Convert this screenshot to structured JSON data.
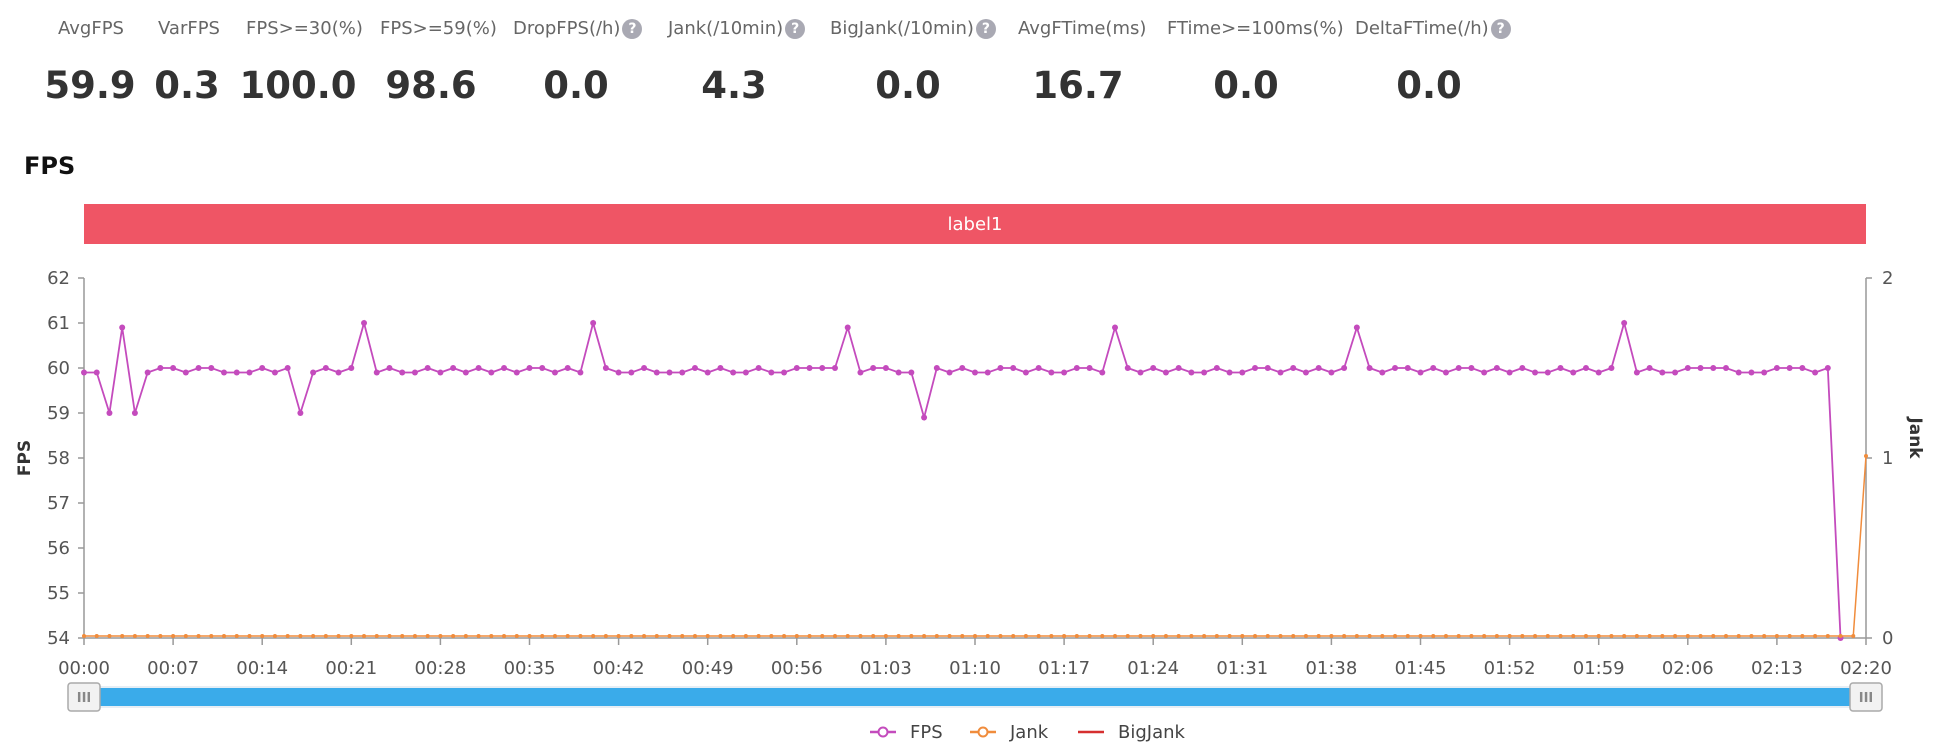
{
  "metrics": [
    {
      "label": "AvgFPS",
      "value": "59.9",
      "help": false
    },
    {
      "label": "VarFPS",
      "value": "0.3",
      "help": false
    },
    {
      "label": "FPS>=30(%)",
      "value": "100.0",
      "help": false
    },
    {
      "label": "FPS>=59(%)",
      "value": "98.6",
      "help": false
    },
    {
      "label": "DropFPS(/h)",
      "value": "0.0",
      "help": true
    },
    {
      "label": "Jank(/10min)",
      "value": "4.3",
      "help": true
    },
    {
      "label": "BigJank(/10min)",
      "value": "0.0",
      "help": true
    },
    {
      "label": "AvgFTime(ms)",
      "value": "16.7",
      "help": false
    },
    {
      "label": "FTime>=100ms(%)",
      "value": "0.0",
      "help": false
    },
    {
      "label": "DeltaFTime(/h)",
      "value": "0.0",
      "help": true
    }
  ],
  "help_glyph": "?",
  "section_title": "FPS",
  "colors": {
    "fps": "#c44bbd",
    "jank": "#f08c3c",
    "bigjank": "#d62f2f",
    "label_band": "#ef5565",
    "slider_fill": "#3aabea",
    "axis": "#999999"
  },
  "chart_data": {
    "type": "line",
    "title": "FPS",
    "label_band": "label1",
    "ylabel": "FPS",
    "y2label": "Jank",
    "ylim": [
      54,
      62
    ],
    "y2lim": [
      0,
      2
    ],
    "yticks": [
      "54",
      "55",
      "56",
      "57",
      "58",
      "59",
      "60",
      "61",
      "62"
    ],
    "y2ticks": [
      "0",
      "1",
      "2"
    ],
    "xlim": [
      0,
      140
    ],
    "xticks": [
      "00:00",
      "00:07",
      "00:14",
      "00:21",
      "00:28",
      "00:35",
      "00:42",
      "00:49",
      "00:56",
      "01:03",
      "01:10",
      "01:17",
      "01:24",
      "01:31",
      "01:38",
      "01:45",
      "01:52",
      "01:59",
      "02:06",
      "02:13",
      "02:20"
    ],
    "legend": [
      "FPS",
      "Jank",
      "BigJank"
    ],
    "series": [
      {
        "name": "FPS",
        "axis": "left",
        "values": [
          59.9,
          59.9,
          59,
          60.9,
          59,
          59.9,
          60,
          60,
          59.9,
          60,
          60,
          59.9,
          59.9,
          59.9,
          60,
          59.9,
          60,
          59,
          59.9,
          60,
          59.9,
          60,
          61,
          59.9,
          60,
          59.9,
          59.9,
          60,
          59.9,
          60,
          59.9,
          60,
          59.9,
          60,
          59.9,
          60,
          60,
          59.9,
          60,
          59.9,
          61,
          60,
          59.9,
          59.9,
          60,
          59.9,
          59.9,
          59.9,
          60,
          59.9,
          60,
          59.9,
          59.9,
          60,
          59.9,
          59.9,
          60,
          60,
          60,
          60,
          60.9,
          59.9,
          60,
          60,
          59.9,
          59.9,
          58.9,
          60,
          59.9,
          60,
          59.9,
          59.9,
          60,
          60,
          59.9,
          60,
          59.9,
          59.9,
          60,
          60,
          59.9,
          60.9,
          60,
          59.9,
          60,
          59.9,
          60,
          59.9,
          59.9,
          60,
          59.9,
          59.9,
          60,
          60,
          59.9,
          60,
          59.9,
          60,
          59.9,
          60,
          60.9,
          60,
          59.9,
          60,
          60,
          59.9,
          60,
          59.9,
          60,
          60,
          59.9,
          60,
          59.9,
          60,
          59.9,
          59.9,
          60,
          59.9,
          60,
          59.9,
          60,
          61,
          59.9,
          60,
          59.9,
          59.9,
          60,
          60,
          60,
          60,
          59.9,
          59.9,
          59.9,
          60,
          60,
          60,
          59.9,
          60,
          54
        ]
      },
      {
        "name": "Jank",
        "axis": "right",
        "values": [
          0,
          0,
          0,
          0,
          0,
          0,
          0,
          0,
          0,
          0,
          0,
          0,
          0,
          0,
          0,
          0,
          0,
          0,
          0,
          0,
          0,
          0,
          0,
          0,
          0,
          0,
          0,
          0,
          0,
          0,
          0,
          0,
          0,
          0,
          0,
          0,
          0,
          0,
          0,
          0,
          0,
          0,
          0,
          0,
          0,
          0,
          0,
          0,
          0,
          0,
          0,
          0,
          0,
          0,
          0,
          0,
          0,
          0,
          0,
          0,
          0,
          0,
          0,
          0,
          0,
          0,
          0,
          0,
          0,
          0,
          0,
          0,
          0,
          0,
          0,
          0,
          0,
          0,
          0,
          0,
          0,
          0,
          0,
          0,
          0,
          0,
          0,
          0,
          0,
          0,
          0,
          0,
          0,
          0,
          0,
          0,
          0,
          0,
          0,
          0,
          0,
          0,
          0,
          0,
          0,
          0,
          0,
          0,
          0,
          0,
          0,
          0,
          0,
          0,
          0,
          0,
          0,
          0,
          0,
          0,
          0,
          0,
          0,
          0,
          0,
          0,
          0,
          0,
          0,
          0,
          0,
          0,
          0,
          0,
          0,
          0,
          0,
          0,
          0,
          0,
          1
        ]
      },
      {
        "name": "BigJank",
        "axis": "right",
        "values": []
      }
    ]
  },
  "zoom_slider": {
    "start_percent": 0,
    "end_percent": 100,
    "handle_glyph": "III"
  }
}
